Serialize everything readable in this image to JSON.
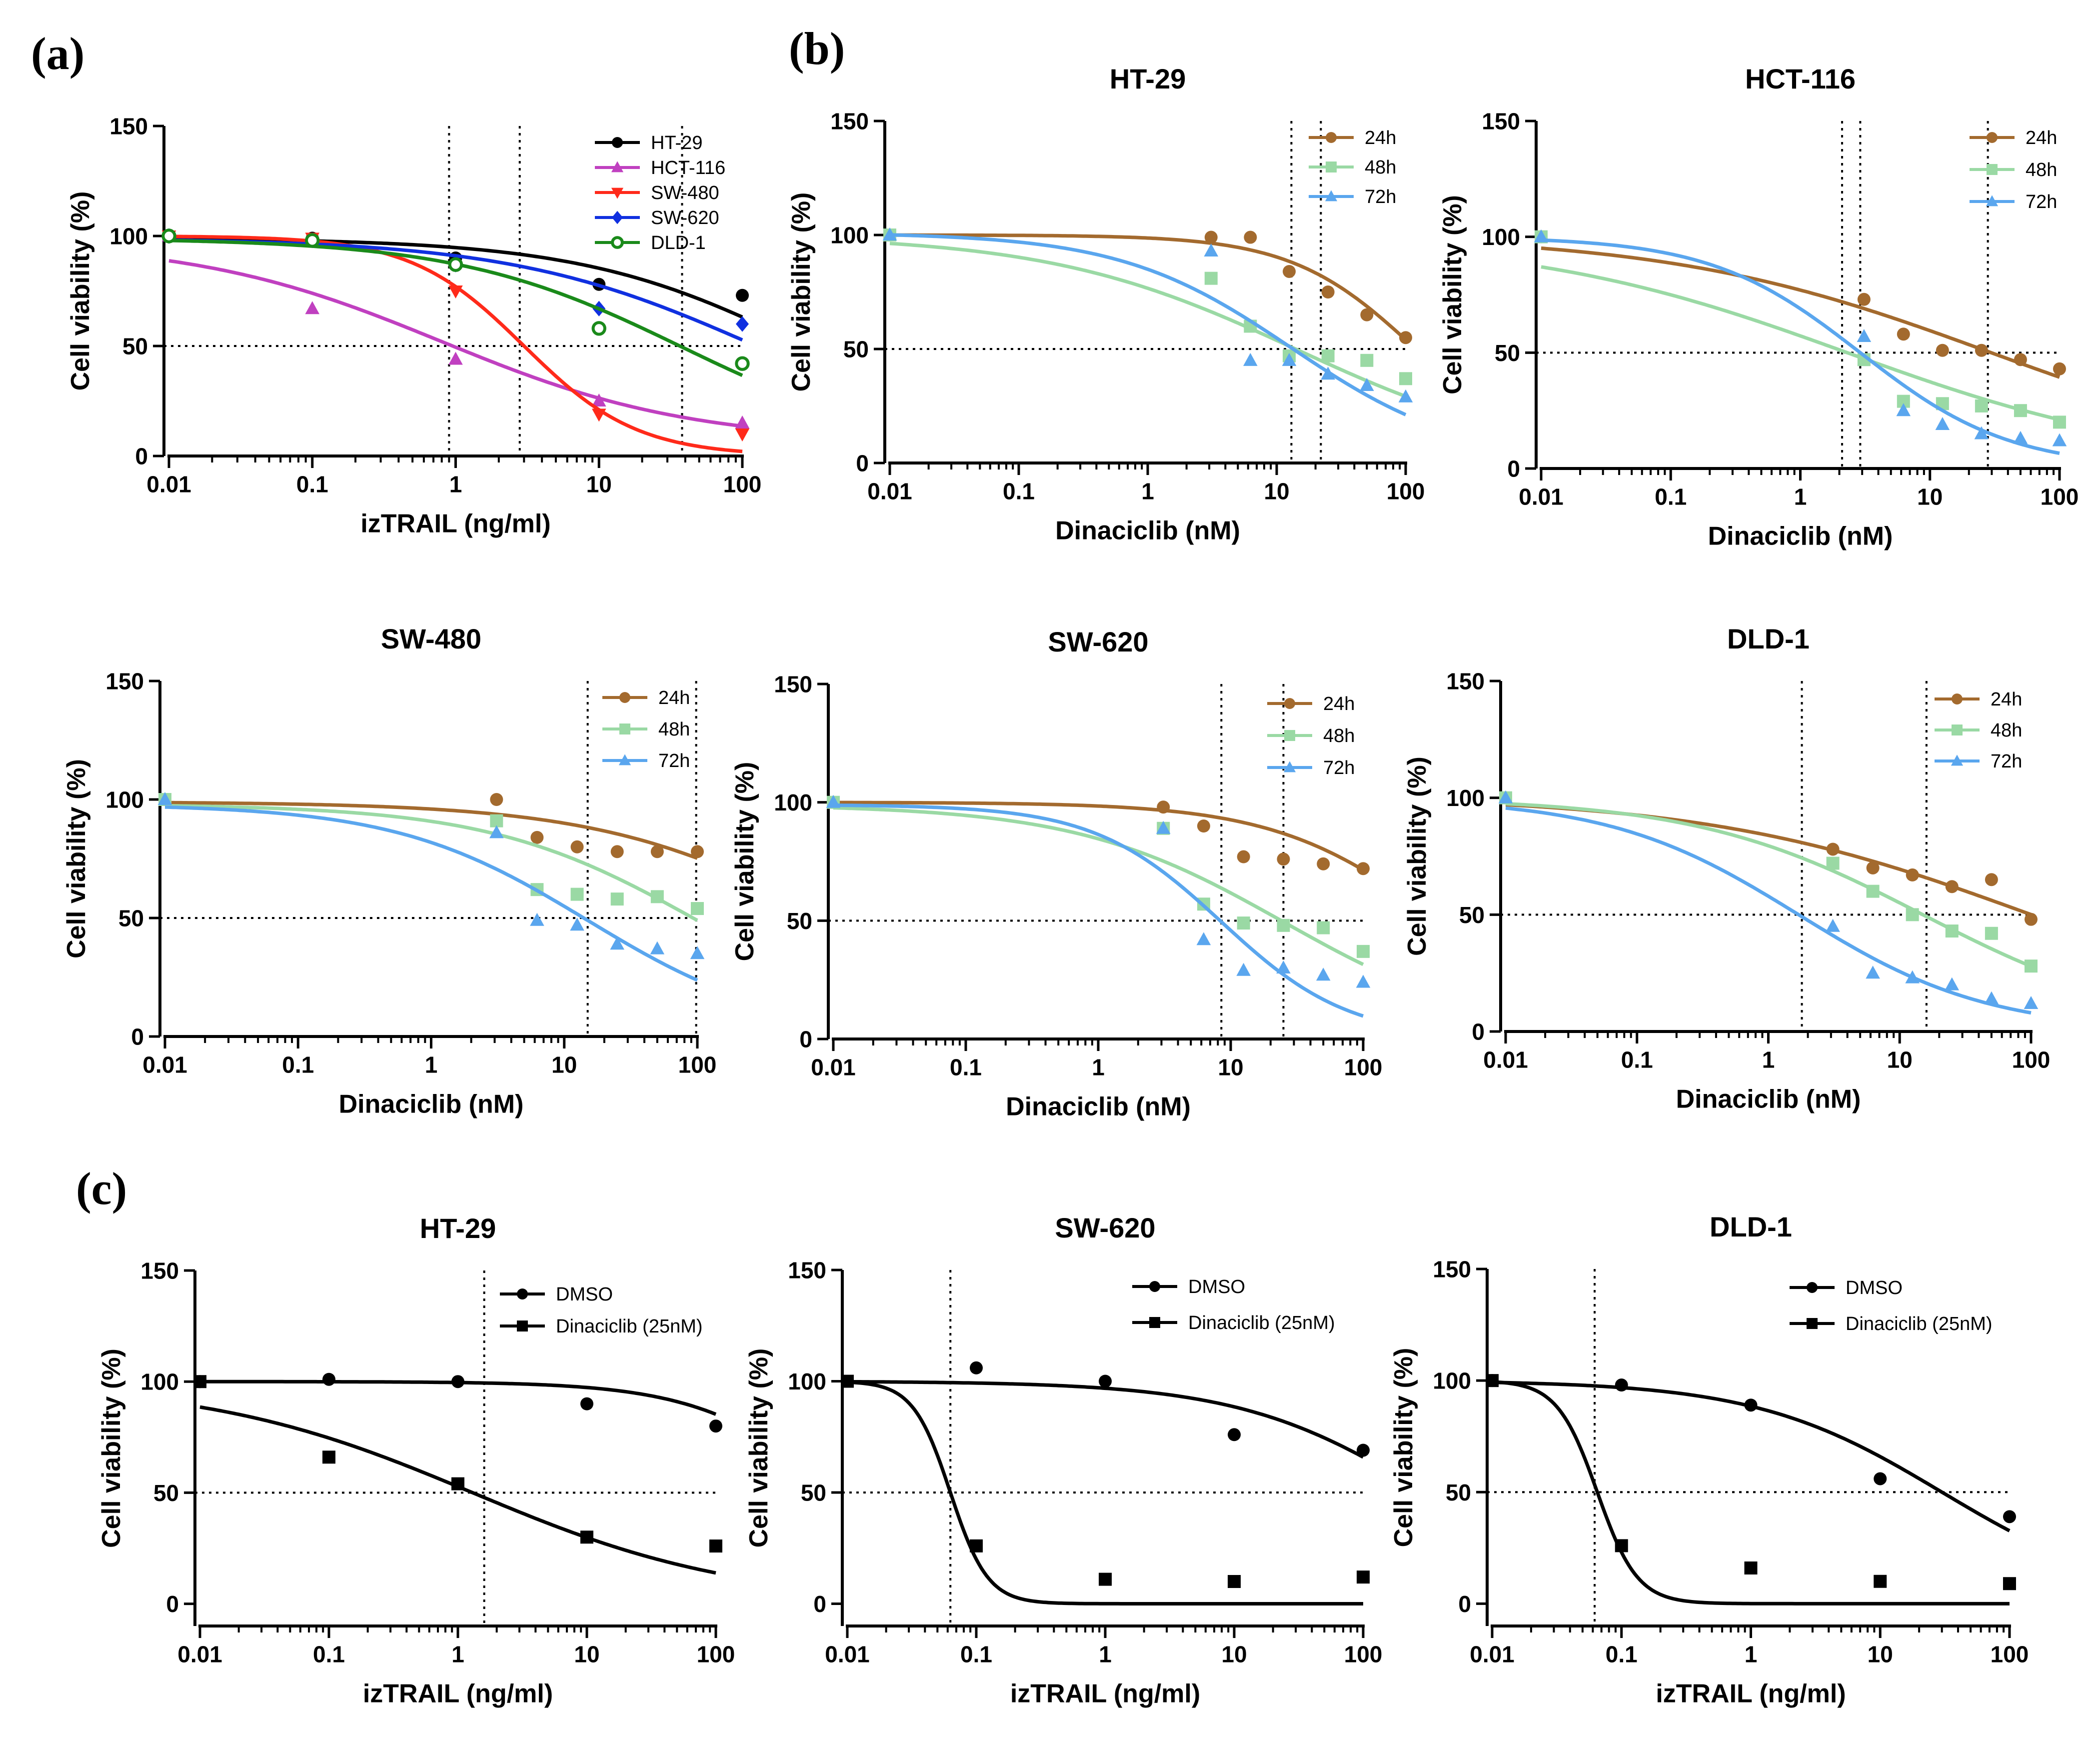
{
  "panel_labels": [
    "(a)",
    "(b)",
    "(c)"
  ],
  "colors": {
    "HT-29": "#000000",
    "HCT-116": "#c040c0",
    "SW-480": "#ff2a1a",
    "SW-620": "#1030e0",
    "DLD-1": "#1a8a1a",
    "24h": "#a36a2e",
    "48h": "#9ad9a4",
    "72h": "#5aa6ee",
    "DMSO": "#000000",
    "Dinaciclib (25nM)": "#000000"
  },
  "chart_data": [
    {
      "id": "a",
      "type": "scatter",
      "title": "",
      "xlabel": "izTRAIL (ng/ml)",
      "ylabel": "Cell viability (%)",
      "xscale": "log",
      "xlim": [
        0.01,
        100
      ],
      "ylim": [
        0,
        150
      ],
      "xticks": [
        "0.01",
        "0.1",
        "1",
        "10",
        "100"
      ],
      "yticks": [
        "0",
        "50",
        "100",
        "150"
      ],
      "legend_position": "top-right",
      "guide_y": 50,
      "guide_x": [
        0.9,
        2.8,
        38
      ],
      "x": [
        0.01,
        0.1,
        1,
        10,
        100
      ],
      "series": [
        {
          "name": "HT-29",
          "marker": "circle",
          "values": [
            100,
            99,
            90,
            78,
            73
          ],
          "fit": {
            "top": 99,
            "bottom": 0,
            "ic50": 280,
            "hill": 0.55
          }
        },
        {
          "name": "HCT-116",
          "marker": "triangle",
          "values": [
            100,
            67,
            44,
            25,
            15
          ],
          "fit": {
            "top": 98,
            "bottom": 6,
            "ic50": 0.8,
            "hill": 0.5
          }
        },
        {
          "name": "SW-480",
          "marker": "triangle-down",
          "values": [
            100,
            99,
            75,
            19,
            10
          ],
          "fit": {
            "top": 100,
            "bottom": 0,
            "ic50": 3,
            "hill": 1.1
          }
        },
        {
          "name": "SW-620",
          "marker": "diamond",
          "values": [
            100,
            98,
            87,
            67,
            60
          ],
          "fit": {
            "top": 99,
            "bottom": 0,
            "ic50": 130,
            "hill": 0.5
          }
        },
        {
          "name": "DLD-1",
          "marker": "circle-open",
          "values": [
            100,
            98,
            87,
            58,
            42
          ],
          "fit": {
            "top": 99,
            "bottom": 0,
            "ic50": 38,
            "hill": 0.55
          }
        }
      ]
    },
    {
      "id": "b1",
      "type": "scatter",
      "title": "HT-29",
      "xlabel": "Dinaciclib (nM)",
      "ylabel": "Cell viability (%)",
      "xscale": "log",
      "xlim": [
        0.01,
        100
      ],
      "ylim": [
        0,
        150
      ],
      "xticks": [
        "0.01",
        "0.1",
        "1",
        "10",
        "100"
      ],
      "yticks": [
        "0",
        "50",
        "100",
        "150"
      ],
      "legend_position": "top-right",
      "guide_y": 50,
      "guide_x": [
        13,
        22
      ],
      "x": [
        0.01,
        3.1,
        6.25,
        12.5,
        25,
        50,
        100
      ],
      "series": [
        {
          "name": "24h",
          "marker": "circle",
          "values": [
            100,
            99,
            99,
            84,
            75,
            65,
            55
          ],
          "fit": {
            "top": 100,
            "bottom": 0,
            "ic50": 120,
            "hill": 0.9
          }
        },
        {
          "name": "48h",
          "marker": "square",
          "values": [
            100,
            81,
            60,
            47,
            47,
            45,
            37
          ],
          "fit": {
            "top": 100,
            "bottom": 0,
            "ic50": 14,
            "hill": 0.45
          }
        },
        {
          "name": "72h",
          "marker": "triangle",
          "values": [
            100,
            93,
            45,
            45,
            39,
            34,
            29
          ],
          "fit": {
            "top": 101,
            "bottom": 0,
            "ic50": 13,
            "hill": 0.65
          }
        }
      ]
    },
    {
      "id": "b2",
      "type": "scatter",
      "title": "HCT-116",
      "xlabel": "Dinaciclib (nM)",
      "ylabel": "Cell viability (%)",
      "xscale": "log",
      "xlim": [
        0.01,
        100
      ],
      "ylim": [
        0,
        150
      ],
      "xticks": [
        "0.01",
        "0.1",
        "1",
        "10",
        "100"
      ],
      "yticks": [
        "0",
        "50",
        "100",
        "150"
      ],
      "legend_position": "top-right",
      "guide_y": 50,
      "guide_x": [
        2.1,
        2.9,
        28
      ],
      "x": [
        0.01,
        3.1,
        6.25,
        12.5,
        25,
        50,
        100
      ],
      "series": [
        {
          "name": "24h",
          "marker": "circle",
          "values": [
            100,
            73,
            58,
            51,
            51,
            47,
            43
          ],
          "fit": {
            "top": 101,
            "bottom": 0,
            "ic50": 28,
            "hill": 0.35
          }
        },
        {
          "name": "48h",
          "marker": "square",
          "values": [
            100,
            47,
            29,
            28,
            27,
            25,
            20
          ],
          "fit": {
            "top": 100,
            "bottom": 0,
            "ic50": 2.3,
            "hill": 0.35
          }
        },
        {
          "name": "72h",
          "marker": "triangle",
          "values": [
            100,
            57,
            25,
            19,
            15,
            13,
            12
          ],
          "fit": {
            "top": 100,
            "bottom": 0,
            "ic50": 2.9,
            "hill": 0.75
          }
        }
      ]
    },
    {
      "id": "b3",
      "type": "scatter",
      "title": "SW-480",
      "xlabel": "Dinaciclib (nM)",
      "ylabel": "Cell viability (%)",
      "xscale": "log",
      "xlim": [
        0.01,
        100
      ],
      "ylim": [
        0,
        150
      ],
      "xticks": [
        "0.01",
        "0.1",
        "1",
        "10",
        "100"
      ],
      "yticks": [
        "0",
        "50",
        "100",
        "150"
      ],
      "legend_position": "top-right",
      "guide_y": 50,
      "guide_x": [
        15,
        98
      ],
      "x": [
        0.01,
        3.1,
        6.25,
        12.5,
        25,
        50,
        100
      ],
      "series": [
        {
          "name": "24h",
          "marker": "circle",
          "values": [
            100,
            100,
            84,
            80,
            78,
            78,
            78
          ],
          "fit": {
            "top": 99,
            "bottom": 0,
            "ic50": 1000,
            "hill": 0.5
          }
        },
        {
          "name": "48h",
          "marker": "square",
          "values": [
            100,
            91,
            62,
            60,
            58,
            59,
            54
          ],
          "fit": {
            "top": 98,
            "bottom": 0,
            "ic50": 100,
            "hill": 0.55
          }
        },
        {
          "name": "72h",
          "marker": "triangle",
          "values": [
            100,
            86,
            49,
            47,
            39,
            37,
            35
          ],
          "fit": {
            "top": 98,
            "bottom": 0,
            "ic50": 15,
            "hill": 0.6
          }
        }
      ]
    },
    {
      "id": "b4",
      "type": "scatter",
      "title": "SW-620",
      "xlabel": "Dinaciclib (nM)",
      "ylabel": "Cell viability (%)",
      "xscale": "log",
      "xlim": [
        0.01,
        100
      ],
      "ylim": [
        0,
        150
      ],
      "xticks": [
        "0.01",
        "0.1",
        "1",
        "10",
        "100"
      ],
      "yticks": [
        "0",
        "50",
        "100",
        "150"
      ],
      "legend_position": "top-right",
      "guide_y": 50,
      "guide_x": [
        8.5,
        25
      ],
      "x": [
        0.01,
        3.1,
        6.25,
        12.5,
        25,
        50,
        100
      ],
      "series": [
        {
          "name": "24h",
          "marker": "circle",
          "values": [
            100,
            98,
            90,
            77,
            76,
            74,
            72
          ],
          "fit": {
            "top": 100,
            "bottom": 0,
            "ic50": 370,
            "hill": 0.7
          }
        },
        {
          "name": "48h",
          "marker": "square",
          "values": [
            100,
            89,
            57,
            49,
            48,
            47,
            37
          ],
          "fit": {
            "top": 99,
            "bottom": 0,
            "ic50": 25,
            "hill": 0.55
          }
        },
        {
          "name": "72h",
          "marker": "triangle",
          "values": [
            100,
            89,
            42,
            29,
            30,
            27,
            24
          ],
          "fit": {
            "top": 99,
            "bottom": 0,
            "ic50": 8.5,
            "hill": 0.9
          }
        }
      ]
    },
    {
      "id": "b5",
      "type": "scatter",
      "title": "DLD-1",
      "xlabel": "Dinaciclib (nM)",
      "ylabel": "Cell viability (%)",
      "xscale": "log",
      "xlim": [
        0.01,
        100
      ],
      "ylim": [
        0,
        150
      ],
      "xticks": [
        "0.01",
        "0.1",
        "1",
        "10",
        "100"
      ],
      "yticks": [
        "0",
        "50",
        "100",
        "150"
      ],
      "legend_position": "top-right",
      "guide_y": 50,
      "guide_x": [
        1.8,
        16
      ],
      "x": [
        0.01,
        3.1,
        6.25,
        12.5,
        25,
        50,
        100
      ],
      "series": [
        {
          "name": "24h",
          "marker": "circle",
          "values": [
            100,
            78,
            70,
            67,
            62,
            65,
            48
          ],
          "fit": {
            "top": 101,
            "bottom": 0,
            "ic50": 95,
            "hill": 0.35
          }
        },
        {
          "name": "48h",
          "marker": "square",
          "values": [
            100,
            72,
            60,
            50,
            43,
            42,
            28
          ],
          "fit": {
            "top": 100,
            "bottom": 0,
            "ic50": 15,
            "hill": 0.5
          }
        },
        {
          "name": "72h",
          "marker": "triangle",
          "values": [
            100,
            45,
            25,
            23,
            20,
            14,
            12
          ],
          "fit": {
            "top": 100,
            "bottom": 0,
            "ic50": 1.7,
            "hill": 0.6
          }
        }
      ]
    },
    {
      "id": "c1",
      "type": "scatter",
      "title": "HT-29",
      "xlabel": "izTRAIL (ng/ml)",
      "ylabel": "Cell viability (%)",
      "xscale": "log",
      "xlim": [
        0.01,
        100
      ],
      "ylim": [
        -10,
        150
      ],
      "xticks": [
        "0.01",
        "0.1",
        "1",
        "10",
        "100"
      ],
      "yticks": [
        "0",
        "50",
        "100",
        "150"
      ],
      "legend_position": "top-right",
      "guide_y": 50,
      "guide_x": [
        1.6
      ],
      "x": [
        0.01,
        0.1,
        1,
        10,
        100
      ],
      "series": [
        {
          "name": "DMSO",
          "marker": "circle",
          "values": [
            100,
            101,
            100,
            90,
            80
          ],
          "fit": {
            "top": 100,
            "bottom": 0,
            "ic50": 900,
            "hill": 0.8
          }
        },
        {
          "name": "Dinaciclib (25nM)",
          "marker": "square",
          "values": [
            100,
            66,
            54,
            30,
            26
          ],
          "fit": {
            "top": 100,
            "bottom": 0,
            "ic50": 1.3,
            "hill": 0.42
          }
        }
      ]
    },
    {
      "id": "c2",
      "type": "scatter",
      "title": "SW-620",
      "xlabel": "izTRAIL (ng/ml)",
      "ylabel": "Cell viability (%)",
      "xscale": "log",
      "xlim": [
        0.01,
        100
      ],
      "ylim": [
        -10,
        150
      ],
      "xticks": [
        "0.01",
        "0.1",
        "1",
        "10",
        "100"
      ],
      "yticks": [
        "0",
        "50",
        "100",
        "150"
      ],
      "legend_position": "top-right",
      "guide_y": 50,
      "guide_x": [
        0.063
      ],
      "x": [
        0.01,
        0.1,
        1,
        10,
        100
      ],
      "series": [
        {
          "name": "DMSO",
          "marker": "circle",
          "values": [
            100,
            106,
            100,
            76,
            69
          ],
          "fit": {
            "top": 100,
            "bottom": 0,
            "ic50": 300,
            "hill": 0.6
          }
        },
        {
          "name": "Dinaciclib (25nM)",
          "marker": "square",
          "values": [
            100,
            26,
            11,
            10,
            12
          ],
          "fit": {
            "top": 100,
            "bottom": 0,
            "ic50": 0.063,
            "hill": 3
          }
        }
      ]
    },
    {
      "id": "c3",
      "type": "scatter",
      "title": "DLD-1",
      "xlabel": "izTRAIL (ng/ml)",
      "ylabel": "Cell viability (%)",
      "xscale": "log",
      "xlim": [
        0.01,
        100
      ],
      "ylim": [
        -10,
        150
      ],
      "xticks": [
        "0.01",
        "0.1",
        "1",
        "10",
        "100"
      ],
      "yticks": [
        "0",
        "50",
        "100",
        "150"
      ],
      "legend_position": "top-right",
      "guide_y": 50,
      "guide_x": [
        0.062
      ],
      "x": [
        0.01,
        0.1,
        1,
        10,
        100
      ],
      "series": [
        {
          "name": "DMSO",
          "marker": "circle",
          "values": [
            100,
            98,
            89,
            56,
            39
          ],
          "fit": {
            "top": 100,
            "bottom": 0,
            "ic50": 30,
            "hill": 0.6
          }
        },
        {
          "name": "Dinaciclib (25nM)",
          "marker": "square",
          "values": [
            100,
            26,
            16,
            10,
            9
          ],
          "fit": {
            "top": 100,
            "bottom": 0,
            "ic50": 0.065,
            "hill": 2.8
          }
        }
      ]
    }
  ]
}
